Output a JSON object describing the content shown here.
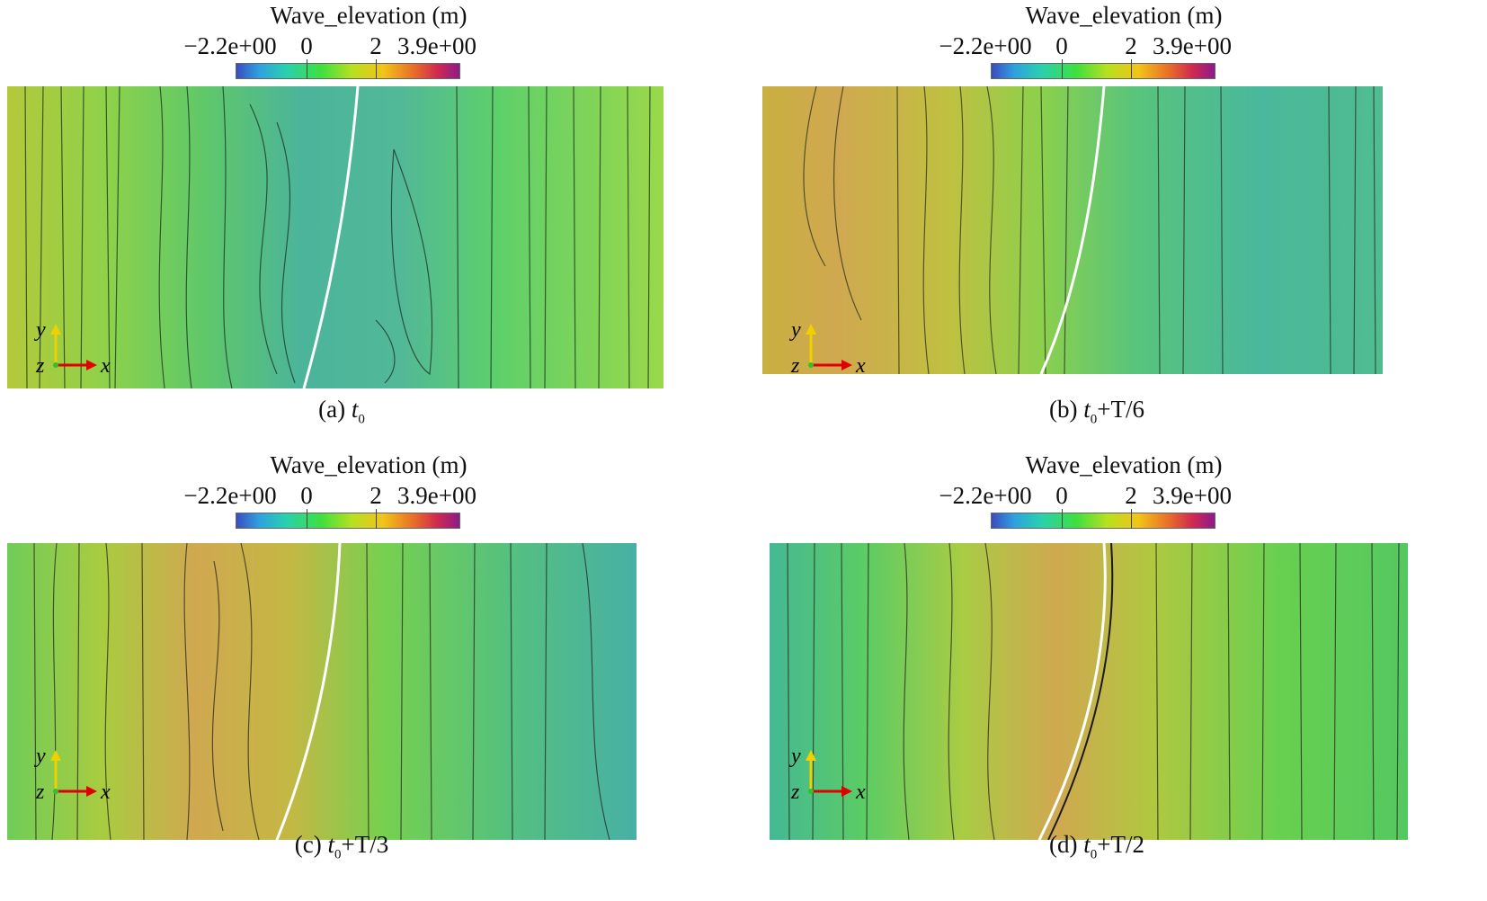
{
  "colorbar": {
    "title": "Wave_elevation (m)",
    "ticks": [
      "−2.2e+00",
      "0",
      "2",
      "3.9e+00"
    ],
    "min": -2.2,
    "max": 3.9,
    "colors": [
      "#3b4cc0",
      "#2fa0e0",
      "#29d0b0",
      "#3ee03e",
      "#b8e020",
      "#f2c318",
      "#e86a2a",
      "#d02a50",
      "#8e1a8c"
    ]
  },
  "axes": {
    "y": "y",
    "z": "z",
    "x": "x",
    "y_color": "#f0d000",
    "x_color": "#e00000",
    "z_color": "#30c030"
  },
  "panels": [
    {
      "label": "(a) ",
      "t": "t",
      "sub": "0",
      "suffix": ""
    },
    {
      "label": "(b) ",
      "t": "t",
      "sub": "0",
      "suffix": "+T/6"
    },
    {
      "label": "(c) ",
      "t": "t",
      "sub": "0",
      "suffix": "+T/3"
    },
    {
      "label": "(d) ",
      "t": "t",
      "sub": "0",
      "suffix": "+T/2"
    }
  ]
}
